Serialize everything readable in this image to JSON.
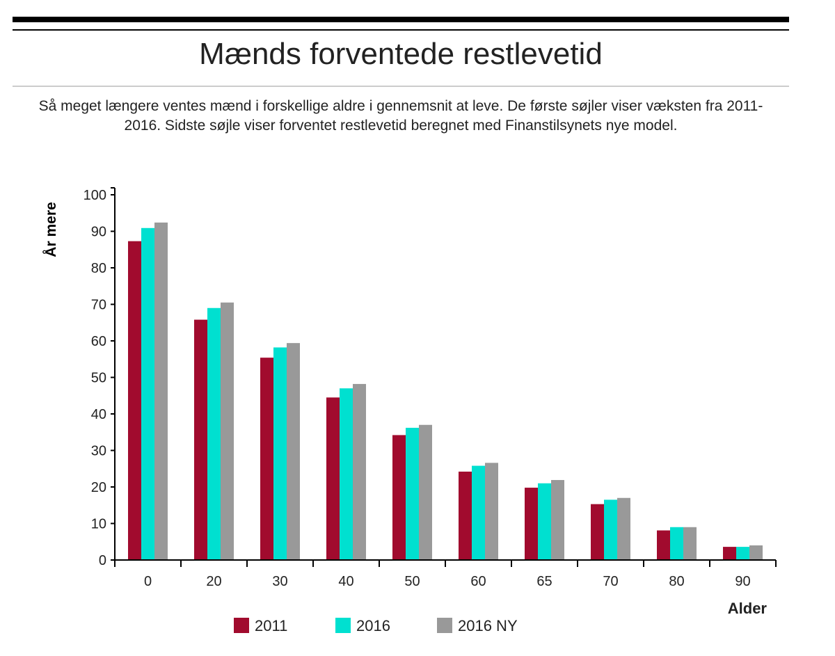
{
  "title": "Mænds forventede restlevetid",
  "subtitle": "Så meget længere ventes mænd i forskellige aldre i gennemsnit at leve. De første søjler viser væksten fra 2011-2016. Sidste søjle viser forventet restlevetid beregnet med Finanstilsynets nye model.",
  "colors": {
    "series_2011": "#A10B2E",
    "series_2016": "#00E0D0",
    "series_2016ny": "#999999",
    "axis": "#000000",
    "rule_thick": "#000000",
    "rule_grey": "#cccccc"
  },
  "chart_data": {
    "type": "bar",
    "title": "Mænds forventede restlevetid",
    "xlabel": "Alder",
    "ylabel": "År mere",
    "categories": [
      "0",
      "20",
      "30",
      "40",
      "50",
      "60",
      "65",
      "70",
      "80",
      "90"
    ],
    "series": [
      {
        "name": "2011",
        "values": [
          87.3,
          65.8,
          55.4,
          44.5,
          34.2,
          24.2,
          19.8,
          15.3,
          8.1,
          3.6
        ]
      },
      {
        "name": "2016",
        "values": [
          90.9,
          69.0,
          58.2,
          47.0,
          36.2,
          25.8,
          21.0,
          16.5,
          9.0,
          3.6
        ]
      },
      {
        "name": "2016 NY",
        "values": [
          92.4,
          70.5,
          59.4,
          48.2,
          37.0,
          26.6,
          21.9,
          17.0,
          9.0,
          4.0
        ]
      }
    ],
    "yticks": [
      "0",
      "10",
      "20",
      "30",
      "40",
      "50",
      "60",
      "70",
      "80",
      "90",
      "100"
    ],
    "ylim": [
      0,
      100
    ],
    "grid": false,
    "legend_position": "bottom"
  }
}
